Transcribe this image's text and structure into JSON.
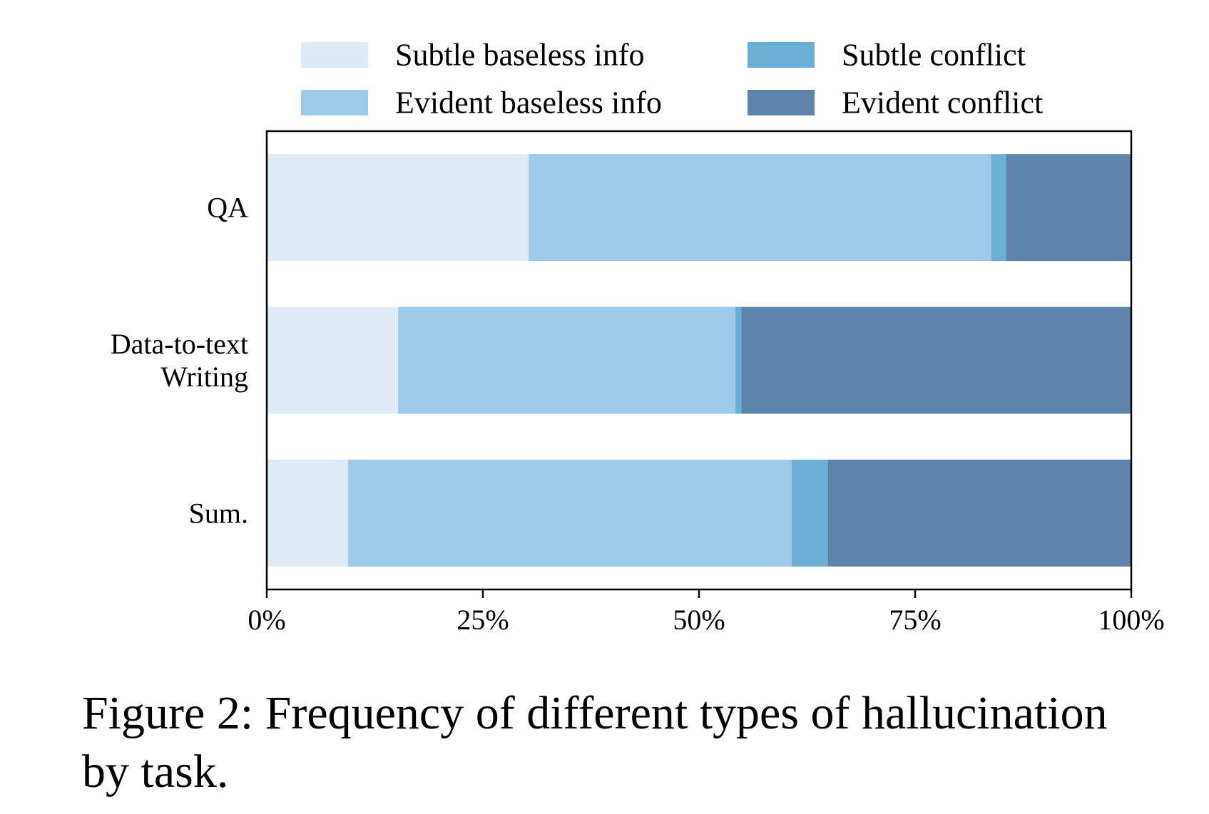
{
  "chart_data": {
    "type": "bar",
    "orientation": "horizontal",
    "stacked": true,
    "normalized": true,
    "categories": [
      {
        "lines": [
          "QA"
        ]
      },
      {
        "lines": [
          "Data-to-text",
          "Writing"
        ]
      },
      {
        "lines": [
          "Sum."
        ]
      }
    ],
    "series": [
      {
        "name": "Subtle baseless info",
        "color": "#deebf7",
        "values": [
          30.3,
          15.2,
          9.4
        ]
      },
      {
        "name": "Evident baseless info",
        "color": "#9ecae9",
        "values": [
          53.5,
          39.0,
          51.3
        ]
      },
      {
        "name": "Subtle conflict",
        "color": "#6baed6",
        "values": [
          1.7,
          0.7,
          4.2
        ]
      },
      {
        "name": "Evident conflict",
        "color": "#5e84ab",
        "values": [
          14.5,
          45.1,
          35.1
        ]
      }
    ],
    "xlim": [
      0,
      100
    ],
    "xticks": [
      "0%",
      "25%",
      "50%",
      "75%",
      "100%"
    ],
    "legend_position": "top",
    "xlabel": "",
    "ylabel": ""
  },
  "caption": {
    "line1": "Figure 2: Frequency of different types of hallucination",
    "line2": "by task."
  }
}
